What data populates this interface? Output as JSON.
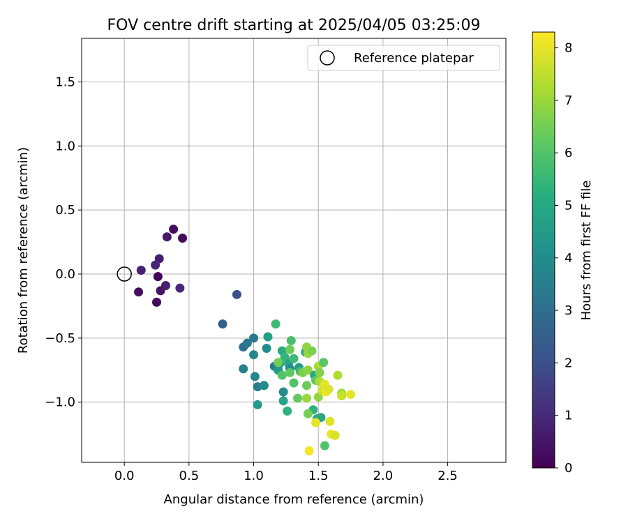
{
  "chart_data": {
    "type": "scatter",
    "title": "FOV centre drift starting at 2025/04/05 03:25:09",
    "xlabel": "Angular distance from reference (arcmin)",
    "ylabel": "Rotation from reference (arcmin)",
    "xlim": [
      -0.33,
      2.95
    ],
    "ylim": [
      -1.47,
      1.84
    ],
    "xticks": [
      0.0,
      0.5,
      1.0,
      1.5,
      2.0,
      2.5
    ],
    "xtick_labels": [
      "0.0",
      "0.5",
      "1.0",
      "1.5",
      "2.0",
      "2.5"
    ],
    "yticks": [
      -1.0,
      -0.5,
      0.0,
      0.5,
      1.0,
      1.5
    ],
    "ytick_labels": [
      "−1.0",
      "−0.5",
      "0.0",
      "0.5",
      "1.0",
      "1.5"
    ],
    "grid": true,
    "legend": {
      "placement": "top-right",
      "entries": [
        "Reference platepar"
      ]
    },
    "reference_point": {
      "x": 0.0,
      "y": 0.0
    },
    "colorbar": {
      "label": "Hours from first FF file",
      "colormap": "viridis",
      "range": [
        0,
        8.3
      ],
      "ticks": [
        0,
        1,
        2,
        3,
        4,
        5,
        6,
        7,
        8
      ],
      "tick_labels": [
        "0",
        "1",
        "2",
        "3",
        "4",
        "5",
        "6",
        "7",
        "8"
      ]
    },
    "point_fields": [
      "x",
      "y",
      "hours"
    ],
    "points": [
      [
        0.38,
        0.35,
        0.3
      ],
      [
        0.45,
        0.28,
        0.2
      ],
      [
        0.33,
        0.29,
        0.6
      ],
      [
        0.13,
        0.03,
        0.8
      ],
      [
        0.27,
        0.12,
        0.7
      ],
      [
        0.24,
        0.07,
        0.9
      ],
      [
        0.26,
        -0.02,
        0.1
      ],
      [
        0.11,
        -0.14,
        0.3
      ],
      [
        0.28,
        -0.13,
        0.5
      ],
      [
        0.32,
        -0.09,
        0.7
      ],
      [
        0.43,
        -0.11,
        1.0
      ],
      [
        0.25,
        -0.22,
        0.2
      ],
      [
        0.87,
        -0.16,
        2.1
      ],
      [
        0.76,
        -0.39,
        2.5
      ],
      [
        0.92,
        -0.57,
        3.0
      ],
      [
        0.95,
        -0.54,
        3.2
      ],
      [
        1.0,
        -0.5,
        3.3
      ],
      [
        0.92,
        -0.74,
        3.6
      ],
      [
        1.0,
        -0.63,
        3.7
      ],
      [
        1.01,
        -0.8,
        3.8
      ],
      [
        1.03,
        -0.88,
        3.4
      ],
      [
        1.08,
        -0.87,
        3.9
      ],
      [
        1.03,
        -1.02,
        4.5
      ],
      [
        1.1,
        -0.58,
        4.0
      ],
      [
        1.11,
        -0.49,
        4.6
      ],
      [
        1.17,
        -0.39,
        5.6
      ],
      [
        1.16,
        -0.72,
        3.5
      ],
      [
        1.2,
        -0.7,
        4.2
      ],
      [
        1.19,
        -0.75,
        4.4
      ],
      [
        1.22,
        -0.6,
        5.1
      ],
      [
        1.24,
        -0.65,
        5.4
      ],
      [
        1.23,
        -0.92,
        3.9
      ],
      [
        1.23,
        -0.99,
        4.8
      ],
      [
        1.26,
        -1.07,
        5.3
      ],
      [
        1.27,
        -0.7,
        4.9
      ],
      [
        1.28,
        -0.74,
        4.0
      ],
      [
        1.29,
        -0.52,
        5.8
      ],
      [
        1.28,
        -0.59,
        6.4
      ],
      [
        1.31,
        -0.66,
        5.6
      ],
      [
        1.35,
        -0.73,
        4.5
      ],
      [
        1.36,
        -0.76,
        5.7
      ],
      [
        1.19,
        -0.69,
        6.5
      ],
      [
        1.22,
        -0.79,
        6.0
      ],
      [
        1.28,
        -0.77,
        6.2
      ],
      [
        1.31,
        -0.85,
        6.0
      ],
      [
        1.34,
        -0.97,
        6.3
      ],
      [
        1.38,
        -0.77,
        6.6
      ],
      [
        1.4,
        -0.61,
        5.2
      ],
      [
        1.41,
        -0.57,
        6.9
      ],
      [
        1.42,
        -0.62,
        7.0
      ],
      [
        1.45,
        -0.6,
        6.6
      ],
      [
        1.42,
        -0.75,
        6.8
      ],
      [
        1.47,
        -0.79,
        5.0
      ],
      [
        1.48,
        -0.83,
        6.2
      ],
      [
        1.5,
        -0.72,
        7.2
      ],
      [
        1.51,
        -0.77,
        6.7
      ],
      [
        1.54,
        -0.69,
        6.1
      ],
      [
        1.41,
        -0.87,
        6.4
      ],
      [
        1.41,
        -0.97,
        7.0
      ],
      [
        1.46,
        -1.06,
        5.3
      ],
      [
        1.42,
        -1.09,
        6.5
      ],
      [
        1.5,
        -0.96,
        6.9
      ],
      [
        1.51,
        -0.84,
        7.3
      ],
      [
        1.53,
        -0.91,
        7.7
      ],
      [
        1.55,
        -0.86,
        8.0
      ],
      [
        1.56,
        -0.92,
        8.1
      ],
      [
        1.58,
        -0.9,
        7.9
      ],
      [
        1.49,
        -1.13,
        5.1
      ],
      [
        1.52,
        -1.12,
        5.0
      ],
      [
        1.48,
        -1.16,
        8.0
      ],
      [
        1.59,
        -1.15,
        7.9
      ],
      [
        1.6,
        -1.25,
        8.1
      ],
      [
        1.63,
        -1.26,
        7.8
      ],
      [
        1.55,
        -1.34,
        6.0
      ],
      [
        1.43,
        -1.38,
        8.2
      ],
      [
        1.65,
        -0.79,
        7.3
      ],
      [
        1.68,
        -0.93,
        7.1
      ],
      [
        1.68,
        -0.95,
        7.6
      ],
      [
        1.75,
        -0.94,
        8.0
      ]
    ]
  }
}
